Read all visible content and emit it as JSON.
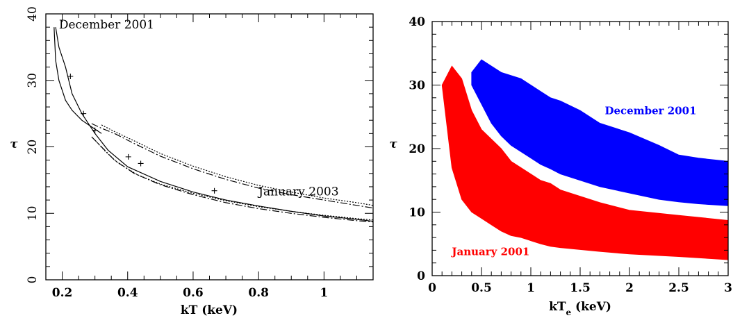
{
  "chart_data": [
    {
      "type": "line",
      "xlabel": "kT (keV)",
      "ylabel": "τ",
      "xlim": [
        0.15,
        1.15
      ],
      "ylim": [
        0,
        40
      ],
      "xticks": [
        "0.2",
        "0.4",
        "0.6",
        "0.8",
        "1"
      ],
      "yticks": [
        "0",
        "10",
        "20",
        "30",
        "40"
      ],
      "annotations": [
        {
          "text": "December 2001",
          "x": 0.19,
          "y": 37.8
        },
        {
          "text": "January 2003",
          "x": 0.8,
          "y": 12.7
        }
      ],
      "colors": {
        "curves": "#000000"
      },
      "series": [
        {
          "style": "solid",
          "x": [
            0.18,
            0.19,
            0.21,
            0.23,
            0.26,
            0.3,
            0.34,
            0.4,
            0.5,
            0.6,
            0.7,
            0.8,
            0.9,
            1.0,
            1.1,
            1.15
          ],
          "y": [
            38,
            35,
            32,
            28,
            25,
            22,
            19.5,
            17,
            14.8,
            13.2,
            12,
            11.1,
            10.3,
            9.6,
            9.1,
            8.8
          ]
        },
        {
          "style": "solid",
          "x": [
            0.175,
            0.18,
            0.19,
            0.21,
            0.23,
            0.26,
            0.29,
            0.32
          ],
          "y": [
            38,
            33,
            30,
            27,
            25.5,
            24,
            23,
            22
          ]
        },
        {
          "style": "dash-dot",
          "x": [
            0.29,
            0.32,
            0.36,
            0.42,
            0.5,
            0.6,
            0.7,
            0.8,
            0.9,
            1.0,
            1.1,
            1.15
          ],
          "y": [
            23.5,
            22.8,
            22,
            20.5,
            18.6,
            16.7,
            15.1,
            13.8,
            12.8,
            12.0,
            11.2,
            10.8
          ]
        },
        {
          "style": "dotted",
          "x": [
            0.32,
            0.36,
            0.42,
            0.5,
            0.6,
            0.7,
            0.8,
            0.9,
            1.0,
            1.1,
            1.15
          ],
          "y": [
            23.3,
            22.3,
            20.9,
            19.0,
            17.1,
            15.5,
            14.2,
            13.2,
            12.3,
            11.6,
            11.2
          ]
        },
        {
          "style": "dash-dot",
          "x": [
            0.29,
            0.32,
            0.36,
            0.42,
            0.5,
            0.6,
            0.7,
            0.8,
            0.9,
            1.0,
            1.1,
            1.15
          ],
          "y": [
            21.5,
            20,
            18,
            16,
            14.3,
            12.8,
            11.6,
            10.7,
            10.0,
            9.4,
            8.9,
            8.7
          ]
        },
        {
          "style": "dotted",
          "x": [
            0.3,
            0.33,
            0.37,
            0.43,
            0.5,
            0.6,
            0.7,
            0.8,
            0.9,
            1.0,
            1.1,
            1.15
          ],
          "y": [
            21.0,
            19.4,
            17.6,
            15.8,
            14.4,
            13.0,
            11.9,
            11.0,
            10.3,
            9.7,
            9.2,
            9.0
          ]
        }
      ],
      "points": [
        {
          "x": 0.225,
          "y": 30.6
        },
        {
          "x": 0.265,
          "y": 25
        },
        {
          "x": 0.3,
          "y": 22.5
        },
        {
          "x": 0.402,
          "y": 18.5
        },
        {
          "x": 0.44,
          "y": 17.5
        },
        {
          "x": 0.665,
          "y": 13.4
        }
      ]
    },
    {
      "type": "area",
      "xlabel": "kT",
      "xlabel_subscript": "e",
      "xlabel_suffix": " (keV)",
      "ylabel": "τ",
      "xlim": [
        0,
        3
      ],
      "ylim": [
        0,
        40
      ],
      "xticks": [
        "0",
        "0.5",
        "1",
        "1.5",
        "2",
        "2.5",
        "3"
      ],
      "yticks": [
        "0",
        "10",
        "20",
        "30",
        "40"
      ],
      "series": [
        {
          "name": "January 2001",
          "color": "#ff0000",
          "x": [
            0.1,
            0.2,
            0.3,
            0.4,
            0.5,
            0.6,
            0.7,
            0.8,
            0.9,
            1.0,
            1.1,
            1.2,
            1.3,
            1.5,
            1.7,
            2.0,
            2.5,
            3.0
          ],
          "upper": [
            30,
            33,
            31,
            26,
            23,
            21.5,
            20,
            18,
            17,
            16,
            15,
            14.5,
            13.5,
            12.5,
            11.5,
            10.3,
            9.5,
            8.7
          ],
          "lower": [
            30,
            17,
            12,
            10,
            9,
            8,
            7,
            6.3,
            6.0,
            5.5,
            5.0,
            4.6,
            4.4,
            4.1,
            3.8,
            3.4,
            3.0,
            2.5
          ]
        },
        {
          "name": "December 2001",
          "color": "#0000ff",
          "x": [
            0.4,
            0.5,
            0.6,
            0.7,
            0.8,
            0.9,
            1.0,
            1.1,
            1.2,
            1.3,
            1.5,
            1.7,
            2.0,
            2.3,
            2.5,
            2.7,
            3.0
          ],
          "upper": [
            32,
            34,
            33,
            32,
            31.5,
            31,
            30,
            29,
            28,
            27.5,
            26,
            24,
            22.5,
            20.5,
            19,
            18.5,
            18
          ],
          "lower": [
            30,
            27,
            24,
            22,
            20.5,
            19.5,
            18.5,
            17.5,
            16.8,
            16,
            15,
            14,
            13,
            12,
            11.6,
            11.3,
            11
          ]
        }
      ],
      "annotations": [
        {
          "text": "December 2001",
          "x": 1.75,
          "y": 25.4,
          "color": "#0000ff"
        },
        {
          "text": "January 2001",
          "x": 0.2,
          "y": 3.2,
          "color": "#ff0000"
        }
      ]
    }
  ]
}
